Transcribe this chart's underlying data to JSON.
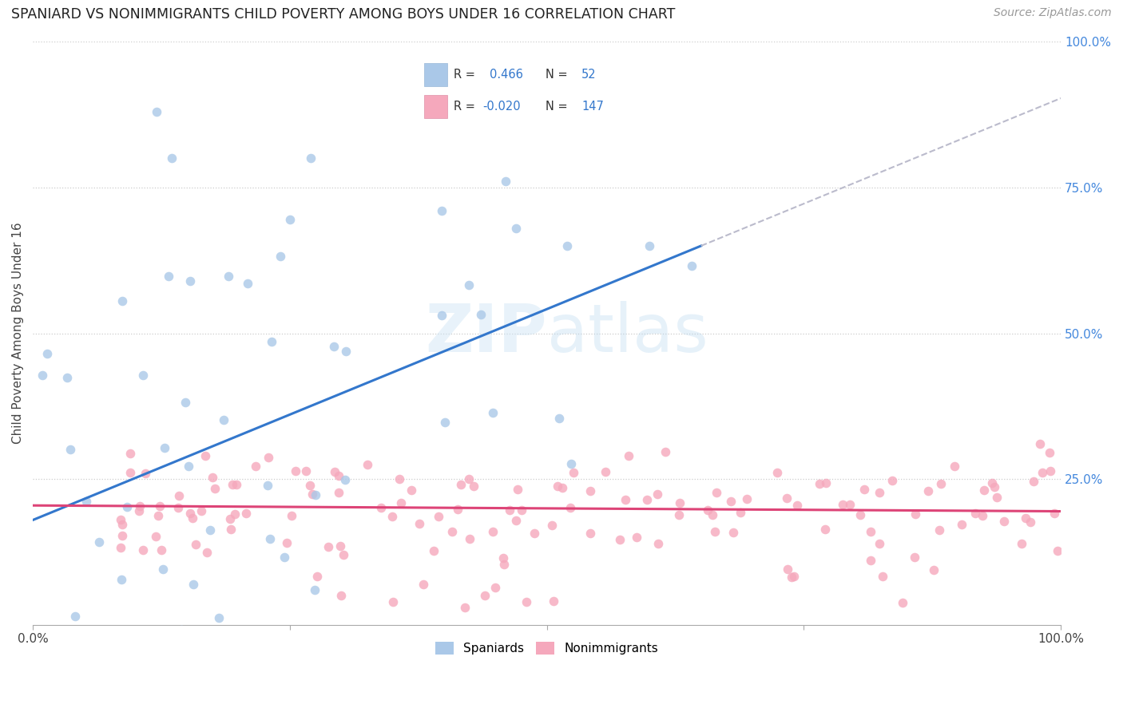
{
  "title": "SPANIARD VS NONIMMIGRANTS CHILD POVERTY AMONG BOYS UNDER 16 CORRELATION CHART",
  "source": "Source: ZipAtlas.com",
  "ylabel": "Child Poverty Among Boys Under 16",
  "xlim": [
    0,
    1
  ],
  "ylim": [
    0,
    1
  ],
  "background_color": "#ffffff",
  "watermark_text": "ZIPatlas",
  "spaniard_color": "#aac8e8",
  "nonimmigrant_color": "#f5a8bc",
  "spaniard_line_color": "#3377cc",
  "nonimmigrant_line_color": "#dd4477",
  "dash_line_color": "#bbbbcc",
  "R_spaniard": 0.466,
  "N_spaniard": 52,
  "R_nonimmigrant": -0.02,
  "N_nonimmigrant": 147,
  "blue_line_x0": 0.0,
  "blue_line_y0": 0.18,
  "blue_line_x1": 0.65,
  "blue_line_y1": 0.65,
  "pink_line_x0": 0.0,
  "pink_line_y0": 0.205,
  "pink_line_x1": 1.0,
  "pink_line_y1": 0.195
}
